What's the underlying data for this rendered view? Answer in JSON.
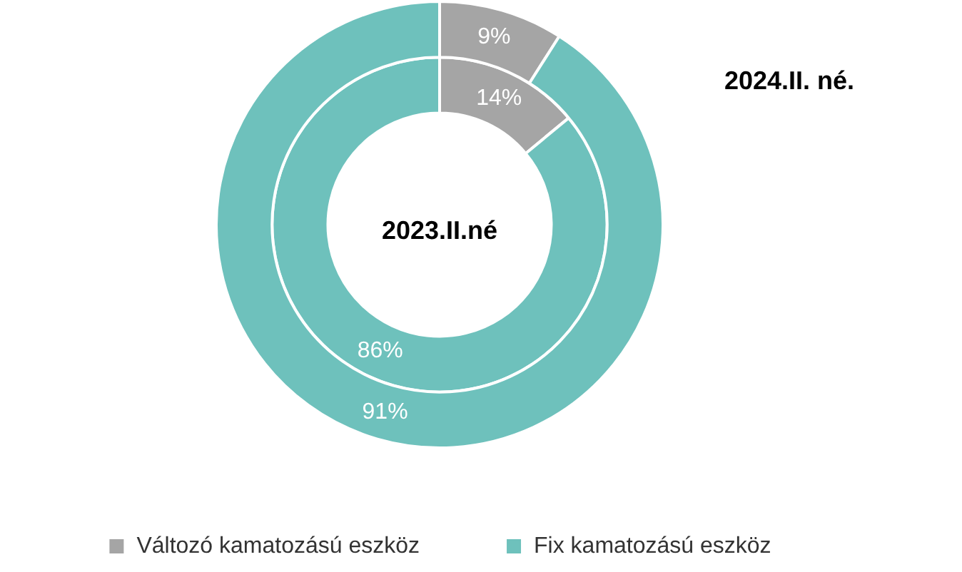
{
  "chart_data": {
    "type": "donut",
    "categories": [
      "Változó kamatozású eszköz",
      "Fix kamatozású eszköz"
    ],
    "colors": [
      "#a5a5a5",
      "#6ec1bc"
    ],
    "series": [
      {
        "name": "2023.II.né",
        "values": [
          14,
          86
        ],
        "value_labels": [
          "14%",
          "86%"
        ]
      },
      {
        "name": "2024.II. né.",
        "values": [
          9,
          91
        ],
        "value_labels": [
          "9%",
          "91%"
        ]
      }
    ],
    "legend": "bottom"
  }
}
